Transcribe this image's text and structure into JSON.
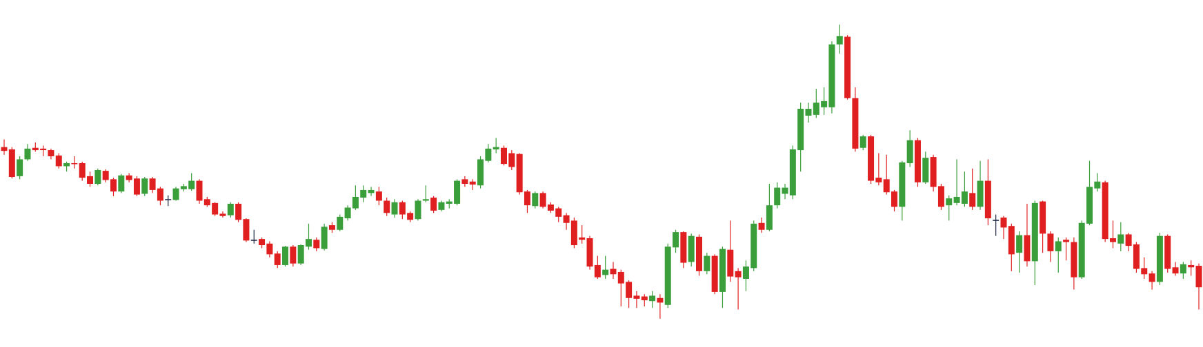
{
  "chart_data": {
    "type": "candlestick",
    "ylim": [
      7,
      460
    ],
    "up_color": "#3a9e3a",
    "down_color": "#e02020",
    "flat_color": "#1a2340",
    "open": [
      268,
      265,
      230,
      252,
      267,
      266,
      264,
      257,
      243,
      247,
      247,
      230,
      220,
      237,
      226,
      210,
      231,
      227,
      207,
      227,
      214,
      200,
      199,
      213,
      213,
      224,
      200,
      195,
      181,
      179,
      194,
      174,
      147,
      148,
      142,
      129,
      114,
      138,
      116,
      138,
      147,
      135,
      166,
      160,
      175,
      188,
      202,
      208,
      210,
      198,
      180,
      196,
      182,
      174,
      198,
      202,
      186,
      194,
      194,
      226,
      223,
      218,
      250,
      265,
      267,
      260,
      259,
      210,
      191,
      208,
      193,
      188,
      179,
      172,
      150,
      149,
      114,
      101,
      109,
      105,
      92,
      74,
      73,
      67,
      71,
      62,
      137,
      157,
      118,
      151,
      106,
      126,
      79,
      134,
      106,
      96,
      110,
      169,
      160,
      192,
      207,
      205,
      264,
      309,
      310,
      320,
      320,
      402,
      412,
      332,
      267,
      282,
      228,
      226,
      210,
      190,
      247,
      277,
      222,
      255,
      217,
      192,
      195,
      194,
      208,
      190,
      224,
      173,
      176,
      165,
      130,
      153,
      119,
      197,
      155,
      132,
      147,
      144,
      98,
      168,
      214,
      222,
      149,
      142,
      154,
      141,
      110,
      103,
      92,
      152,
      111,
      103,
      114,
      113
    ],
    "high": [
      278,
      268,
      256,
      272,
      274,
      270,
      266,
      260,
      249,
      256,
      249,
      236,
      240,
      239,
      228,
      233,
      234,
      230,
      229,
      229,
      216,
      205,
      216,
      220,
      234,
      226,
      203,
      196,
      184,
      196,
      196,
      175,
      160,
      150,
      145,
      132,
      139,
      140,
      141,
      168,
      150,
      168,
      170,
      180,
      192,
      218,
      218,
      216,
      216,
      202,
      200,
      198,
      184,
      200,
      218,
      204,
      198,
      200,
      226,
      230,
      226,
      256,
      272,
      280,
      270,
      264,
      260,
      212,
      210,
      210,
      196,
      190,
      182,
      176,
      166,
      152,
      126,
      126,
      118,
      108,
      94,
      80,
      76,
      80,
      76,
      142,
      160,
      158,
      155,
      154,
      130,
      128,
      138,
      172,
      110,
      120,
      172,
      176,
      220,
      222,
      220,
      270,
      326,
      326,
      344,
      346,
      406,
      428,
      414,
      346,
      284,
      284,
      260,
      258,
      212,
      250,
      290,
      280,
      262,
      258,
      220,
      205,
      252,
      236,
      240,
      250,
      252,
      180,
      178,
      168,
      158,
      194,
      198,
      198,
      158,
      150,
      150,
      150,
      172,
      250,
      234,
      224,
      172,
      170,
      156,
      144,
      124,
      106,
      156,
      154,
      118,
      118,
      120,
      116
    ],
    "low": [
      258,
      227,
      226,
      250,
      262,
      256,
      252,
      240,
      236,
      240,
      224,
      216,
      218,
      222,
      204,
      208,
      222,
      204,
      204,
      208,
      192,
      191,
      198,
      210,
      211,
      194,
      190,
      178,
      176,
      176,
      170,
      144,
      142,
      136,
      124,
      110,
      112,
      112,
      114,
      134,
      132,
      133,
      156,
      158,
      172,
      186,
      196,
      204,
      192,
      178,
      176,
      174,
      170,
      172,
      196,
      182,
      184,
      188,
      192,
      216,
      212,
      214,
      248,
      260,
      244,
      238,
      206,
      182,
      188,
      188,
      182,
      170,
      160,
      136,
      142,
      108,
      96,
      96,
      96,
      60,
      58,
      58,
      60,
      58,
      44,
      58,
      130,
      110,
      112,
      100,
      102,
      76,
      58,
      92,
      56,
      80,
      106,
      156,
      158,
      188,
      200,
      200,
      236,
      300,
      306,
      310,
      312,
      390,
      330,
      262,
      264,
      220,
      218,
      206,
      184,
      172,
      242,
      216,
      220,
      210,
      186,
      172,
      192,
      190,
      186,
      186,
      166,
      152,
      148,
      106,
      104,
      112,
      88,
      130,
      118,
      104,
      120,
      82,
      96,
      166,
      210,
      144,
      136,
      132,
      132,
      104,
      96,
      82,
      88,
      104,
      100,
      96,
      100,
      56
    ],
    "close": [
      263,
      229,
      252,
      266,
      264,
      264,
      256,
      243,
      247,
      246,
      228,
      220,
      238,
      225,
      210,
      231,
      225,
      206,
      227,
      212,
      198,
      200,
      214,
      217,
      224,
      198,
      192,
      180,
      178,
      194,
      173,
      146,
      147,
      140,
      128,
      114,
      138,
      116,
      140,
      148,
      136,
      164,
      160,
      177,
      189,
      203,
      212,
      212,
      198,
      182,
      196,
      180,
      173,
      198,
      200,
      185,
      196,
      197,
      224,
      220,
      219,
      252,
      266,
      268,
      246,
      242,
      209,
      192,
      208,
      190,
      185,
      177,
      169,
      140,
      147,
      112,
      98,
      108,
      102,
      90,
      71,
      70,
      68,
      74,
      65,
      138,
      157,
      117,
      152,
      106,
      126,
      79,
      135,
      99,
      98,
      112,
      168,
      160,
      192,
      215,
      215,
      265,
      318,
      318,
      326,
      328,
      402,
      413,
      332,
      266,
      282,
      224,
      222,
      209,
      190,
      248,
      277,
      222,
      254,
      216,
      190,
      201,
      203,
      210,
      190,
      224,
      175,
      173,
      163,
      128,
      153,
      119,
      195,
      155,
      132,
      145,
      144,
      98,
      169,
      216,
      223,
      148,
      144,
      154,
      139,
      109,
      102,
      92,
      152,
      109,
      103,
      115,
      111,
      85
    ]
  }
}
